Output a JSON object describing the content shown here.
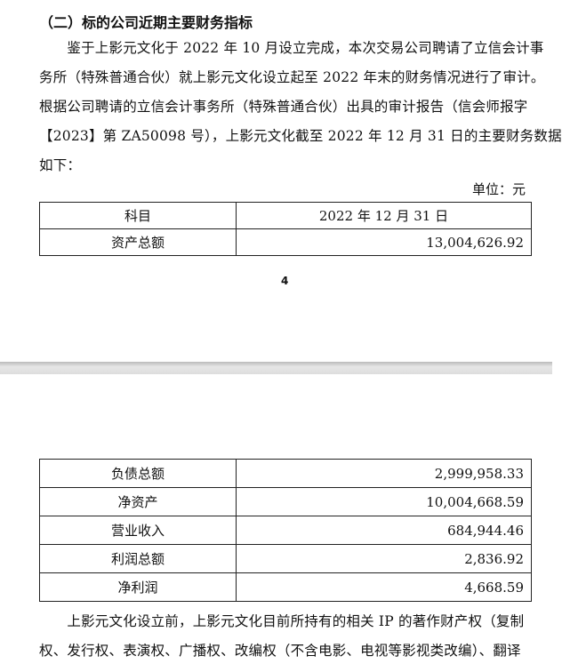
{
  "heading": "（二）标的公司近期主要财务指标",
  "para1": [
    "　　鉴于上影元文化于 2022 年 10 月设立完成，本次交易公司聘请了立信会计事",
    "务所（特殊普通合伙）就上影元文化设立起至 2022 年末的财务情况进行了审计。",
    "根据公司聘请的立信会计事务所（特殊普通合伙）出具的审计报告（信会师报字",
    "【2023】第 ZA50098 号），上影元文化截至 2022 年 12 月 31 日的主要财务数据",
    "如下："
  ],
  "unit": "单位：元",
  "table1": {
    "header": [
      "科目",
      "2022 年 12 月 31 日"
    ],
    "rows": [
      [
        "资产总额",
        "13,004,626.92"
      ]
    ]
  },
  "page_number": "4",
  "table2": {
    "rows": [
      [
        "负债总额",
        "2,999,958.33"
      ],
      [
        "净资产",
        "10,004,668.59"
      ],
      [
        "营业收入",
        "684,944.46"
      ],
      [
        "利润总额",
        "2,836.92"
      ],
      [
        "净利润",
        "4,668.59"
      ]
    ]
  },
  "para2": [
    "　　上影元文化设立前，上影元文化目前所持有的相关 IP 的著作财产权（复制",
    "权、发行权、表演权、广播权、改编权（不含电影、电视等影视类改编）、翻译"
  ]
}
